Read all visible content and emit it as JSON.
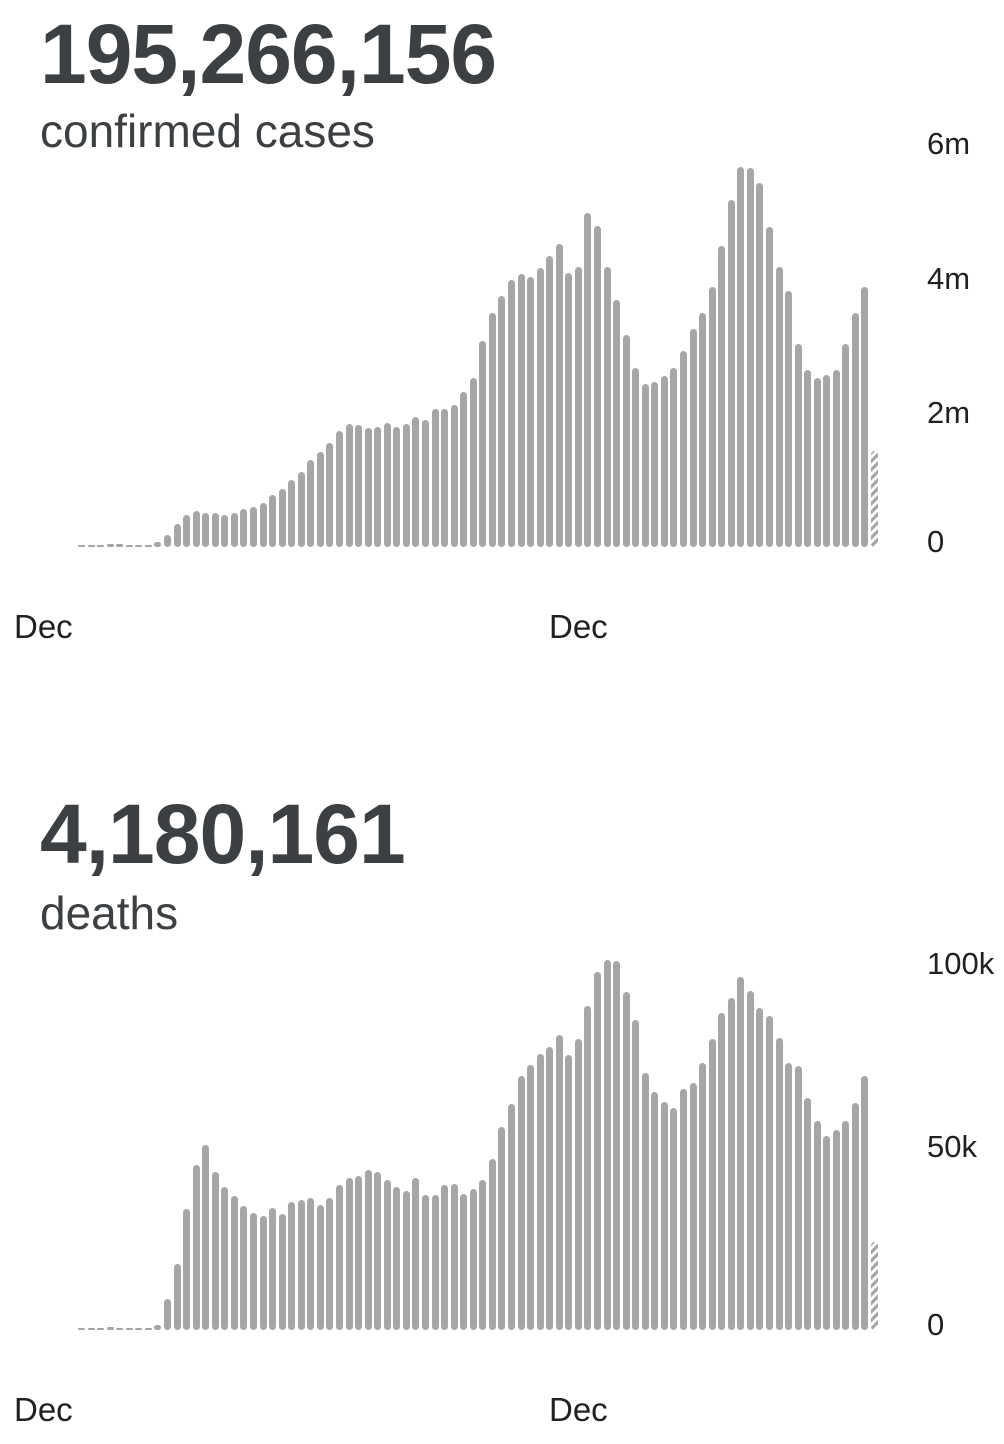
{
  "colors": {
    "bar": "#a6a6a6",
    "stat_text": "#3c4043",
    "axis_text": "#202124",
    "background": "#ffffff"
  },
  "chart_data": [
    {
      "type": "bar",
      "stat_value": "195,266,156",
      "stat_label": "confirmed cases",
      "unit": "millions of weekly confirmed cases",
      "ylim": [
        0,
        6
      ],
      "grid": false,
      "legend": false,
      "y_ticks": [
        {
          "label": "6m",
          "value": 6
        },
        {
          "label": "4m",
          "value": 4
        },
        {
          "label": "2m",
          "value": 2
        },
        {
          "label": "0",
          "value": 0
        }
      ],
      "x_ticks": [
        "Dec",
        "Dec"
      ],
      "last_bar_partial": true,
      "values": [
        0.005,
        0.01,
        0.03,
        0.045,
        0.04,
        0.02,
        0.015,
        0.02,
        0.08,
        0.18,
        0.35,
        0.48,
        0.54,
        0.5,
        0.51,
        0.48,
        0.5,
        0.56,
        0.59,
        0.65,
        0.78,
        0.87,
        1.0,
        1.12,
        1.29,
        1.42,
        1.55,
        1.72,
        1.83,
        1.82,
        1.77,
        1.79,
        1.84,
        1.78,
        1.83,
        1.94,
        1.89,
        2.05,
        2.06,
        2.12,
        2.31,
        2.52,
        3.07,
        3.48,
        3.73,
        3.98,
        4.06,
        4.02,
        4.15,
        4.33,
        4.51,
        4.08,
        4.16,
        4.97,
        4.78,
        4.17,
        3.68,
        3.16,
        2.67,
        2.42,
        2.45,
        2.55,
        2.66,
        2.91,
        3.25,
        3.48,
        3.87,
        4.48,
        5.17,
        5.65,
        5.64,
        5.42,
        4.76,
        4.16,
        3.81,
        3.02,
        2.63,
        2.52,
        2.56,
        2.64,
        3.02,
        3.49,
        3.87,
        1.43
      ]
    },
    {
      "type": "bar",
      "stat_value": "4,180,161",
      "stat_label": "deaths",
      "unit": "thousands of weekly deaths",
      "ylim": [
        0,
        110
      ],
      "grid": false,
      "legend": false,
      "y_ticks": [
        {
          "label": "100k",
          "value": 100
        },
        {
          "label": "50k",
          "value": 50
        },
        {
          "label": "0",
          "value": 0
        }
      ],
      "x_ticks": [
        "Dec",
        "Dec"
      ],
      "last_bar_partial": true,
      "values": [
        0.2,
        0.3,
        0.5,
        0.8,
        0.6,
        0.4,
        0.3,
        0.4,
        1.5,
        8.5,
        18,
        33,
        45,
        50.5,
        43,
        39,
        36.4,
        33.7,
        32,
        31,
        33.3,
        31.5,
        35,
        35.5,
        36,
        34.2,
        36,
        39.6,
        41.5,
        42,
        43.7,
        43,
        41,
        39,
        37.8,
        41.4,
        36.9,
        36.9,
        39.6,
        39.9,
        37.1,
        38.5,
        41,
        46.6,
        55.4,
        61.5,
        69.2,
        72.1,
        75.1,
        77,
        80.3,
        74.9,
        79.2,
        88.2,
        97.5,
        100.9,
        100.6,
        92.2,
        84.5,
        70.1,
        64.9,
        62.1,
        60.6,
        65.6,
        67.2,
        72.8,
        79.2,
        86.3,
        90.6,
        96.3,
        92.4,
        87.7,
        85.6,
        79.7,
        72.8,
        71.9,
        63.3,
        56.9,
        52.8,
        54.6,
        56.9,
        62,
        69.2,
        24.1
      ]
    }
  ]
}
